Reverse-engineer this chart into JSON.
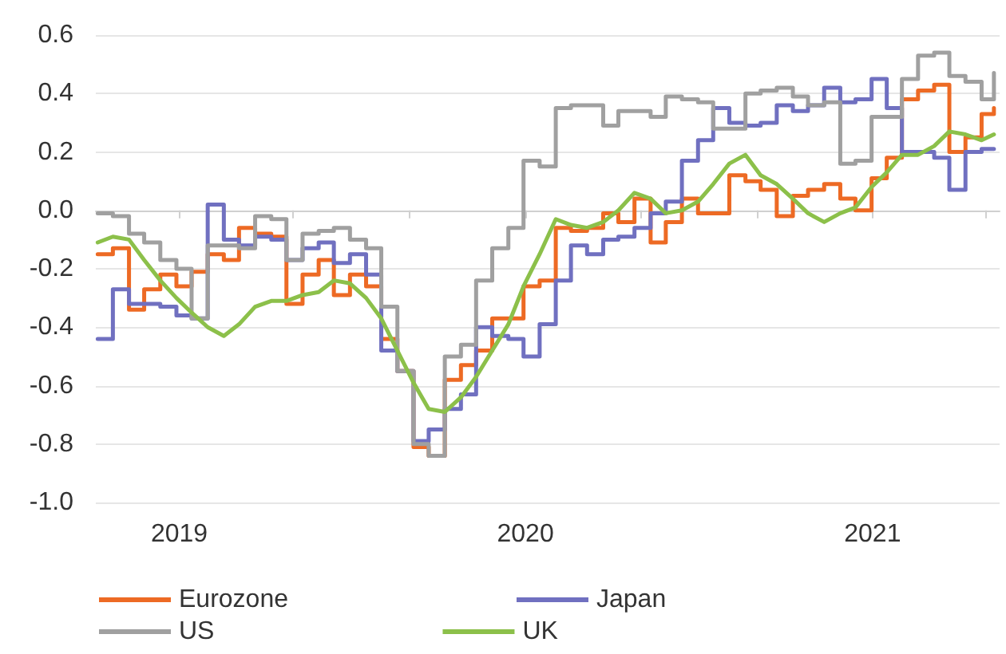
{
  "chart_data": {
    "type": "line",
    "x": [
      "2018-10-07",
      "2018-10-23",
      "2018-11-09",
      "2018-11-25",
      "2018-12-12",
      "2018-12-29",
      "2019-01-14",
      "2019-01-31",
      "2019-02-17",
      "2019-03-05",
      "2019-03-22",
      "2019-04-08",
      "2019-04-24",
      "2019-05-11",
      "2019-05-28",
      "2019-06-13",
      "2019-06-30",
      "2019-07-17",
      "2019-08-02",
      "2019-08-19",
      "2019-09-05",
      "2019-09-21",
      "2019-10-08",
      "2019-10-25",
      "2019-11-10",
      "2019-11-27",
      "2019-12-14",
      "2019-12-30",
      "2020-01-16",
      "2020-02-02",
      "2020-02-18",
      "2020-03-06",
      "2020-03-23",
      "2020-04-08",
      "2020-04-25",
      "2020-05-12",
      "2020-05-28",
      "2020-06-14",
      "2020-07-01",
      "2020-07-17",
      "2020-08-03",
      "2020-08-20",
      "2020-09-05",
      "2020-09-22",
      "2020-10-09",
      "2020-10-25",
      "2020-11-11",
      "2020-11-28",
      "2020-12-14",
      "2020-12-31",
      "2021-01-16",
      "2021-02-01",
      "2021-02-18",
      "2021-03-07",
      "2021-03-23",
      "2021-04-09",
      "2021-04-26",
      "2021-05-09"
    ],
    "series": [
      {
        "name": "Eurozone",
        "type": "step",
        "color": "#ed6a24",
        "values": [
          -0.15,
          -0.13,
          -0.34,
          -0.27,
          -0.22,
          -0.26,
          -0.21,
          -0.15,
          -0.17,
          -0.06,
          -0.08,
          -0.09,
          -0.32,
          -0.22,
          -0.17,
          -0.29,
          -0.22,
          -0.26,
          -0.44,
          -0.55,
          -0.81,
          -0.84,
          -0.58,
          -0.53,
          -0.48,
          -0.37,
          -0.37,
          -0.26,
          -0.24,
          -0.06,
          -0.07,
          -0.06,
          -0.01,
          -0.04,
          0.04,
          -0.11,
          -0.04,
          0.04,
          -0.01,
          -0.01,
          0.12,
          0.1,
          0.07,
          -0.02,
          0.05,
          0.07,
          0.09,
          0.04,
          0.0,
          0.11,
          0.18,
          0.38,
          0.41,
          0.43,
          0.2,
          0.25,
          0.33,
          0.35
        ]
      },
      {
        "name": "Japan",
        "type": "step",
        "color": "#7070c0",
        "values": [
          -0.44,
          -0.27,
          -0.32,
          -0.32,
          -0.33,
          -0.36,
          -0.37,
          0.02,
          -0.1,
          -0.12,
          -0.09,
          -0.1,
          -0.17,
          -0.13,
          -0.11,
          -0.18,
          -0.15,
          -0.22,
          -0.48,
          -0.55,
          -0.79,
          -0.75,
          -0.68,
          -0.63,
          -0.4,
          -0.43,
          -0.44,
          -0.5,
          -0.39,
          -0.24,
          -0.12,
          -0.15,
          -0.1,
          -0.09,
          -0.06,
          -0.01,
          0.03,
          0.17,
          0.24,
          0.35,
          0.3,
          0.29,
          0.3,
          0.36,
          0.34,
          0.36,
          0.42,
          0.37,
          0.38,
          0.45,
          0.35,
          0.2,
          0.2,
          0.18,
          0.07,
          0.2,
          0.21,
          0.21
        ]
      },
      {
        "name": "US",
        "type": "step",
        "color": "#a0a0a0",
        "values": [
          -0.01,
          -0.02,
          -0.08,
          -0.11,
          -0.17,
          -0.2,
          -0.37,
          -0.12,
          -0.12,
          -0.13,
          -0.02,
          -0.03,
          -0.17,
          -0.08,
          -0.07,
          -0.06,
          -0.1,
          -0.13,
          -0.33,
          -0.55,
          -0.8,
          -0.84,
          -0.5,
          -0.46,
          -0.24,
          -0.13,
          -0.06,
          0.17,
          0.15,
          0.35,
          0.36,
          0.36,
          0.29,
          0.34,
          0.34,
          0.32,
          0.39,
          0.38,
          0.37,
          0.28,
          0.28,
          0.4,
          0.41,
          0.42,
          0.39,
          0.36,
          0.37,
          0.16,
          0.17,
          0.32,
          0.32,
          0.45,
          0.53,
          0.54,
          0.46,
          0.44,
          0.38,
          0.47
        ]
      },
      {
        "name": "UK",
        "color": "#8cc04a",
        "values": [
          -0.11,
          -0.09,
          -0.1,
          -0.17,
          -0.24,
          -0.3,
          -0.35,
          -0.4,
          -0.43,
          -0.39,
          -0.33,
          -0.31,
          -0.31,
          -0.29,
          -0.28,
          -0.24,
          -0.25,
          -0.3,
          -0.37,
          -0.48,
          -0.59,
          -0.68,
          -0.69,
          -0.64,
          -0.57,
          -0.48,
          -0.39,
          -0.26,
          -0.15,
          -0.03,
          -0.05,
          -0.06,
          -0.04,
          0.0,
          0.06,
          0.04,
          -0.01,
          0.0,
          0.03,
          0.09,
          0.16,
          0.19,
          0.12,
          0.09,
          0.04,
          -0.01,
          -0.04,
          -0.01,
          0.01,
          0.08,
          0.13,
          0.19,
          0.19,
          0.22,
          0.27,
          0.26,
          0.24,
          0.26
        ]
      }
    ],
    "xlim": [
      "2018-10-05",
      "2021-05-15"
    ],
    "xticks": [
      {
        "value": "2019-01-01",
        "label": "2019"
      },
      {
        "value": "2019-05-01",
        "label": null
      },
      {
        "value": "2019-09-01",
        "label": null
      },
      {
        "value": "2020-01-01",
        "label": "2020"
      },
      {
        "value": "2020-05-01",
        "label": null
      },
      {
        "value": "2020-09-01",
        "label": null
      },
      {
        "value": "2021-01-01",
        "label": "2021"
      },
      {
        "value": "2021-05-01",
        "label": null
      }
    ],
    "ylim": [
      -1,
      0.6
    ],
    "yticks": [
      {
        "value": -1,
        "label": "-1.0"
      },
      -0.8,
      -0.6,
      -0.4,
      -0.2,
      {
        "value": 0,
        "label": "0.0"
      },
      0.2,
      0.4,
      0.6
    ],
    "grid": "y",
    "legend": "bottom",
    "marker": "none",
    "line_style": "solid"
  }
}
